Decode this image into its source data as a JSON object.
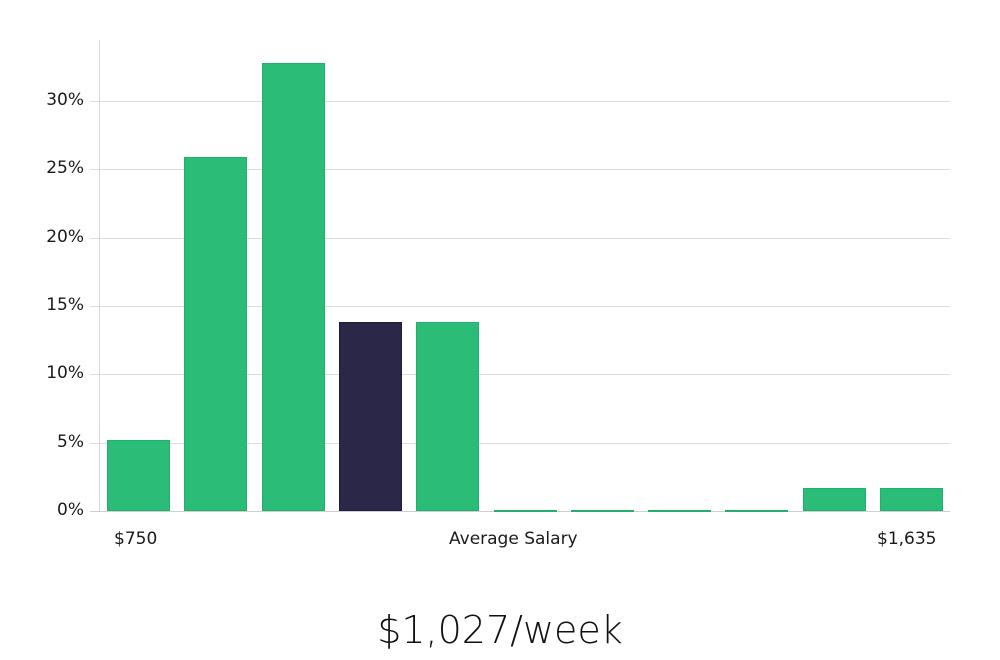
{
  "chart_data": {
    "type": "bar",
    "title": "",
    "xlabel": "Average Salary",
    "ylabel": "",
    "x_tick_labels": {
      "left": "$750",
      "center": "Average Salary",
      "right": "$1,635"
    },
    "categories": [
      "bin1",
      "bin2",
      "bin3",
      "bin4",
      "bin5",
      "bin6",
      "bin7",
      "bin8",
      "bin9",
      "bin10",
      "bin11"
    ],
    "values": [
      5.2,
      25.9,
      32.8,
      13.8,
      13.8,
      0,
      0,
      0,
      0,
      1.7,
      1.7
    ],
    "highlight_index": 3,
    "y_ticks": [
      "0%",
      "5%",
      "10%",
      "15%",
      "20%",
      "25%",
      "30%"
    ],
    "ylim": [
      0,
      34
    ],
    "grid": true,
    "legend": null,
    "colors": {
      "bar": "#2bbd78",
      "highlight": "#2a2748",
      "grid": "#dcdcdc"
    }
  },
  "headline": "$1,027/week"
}
